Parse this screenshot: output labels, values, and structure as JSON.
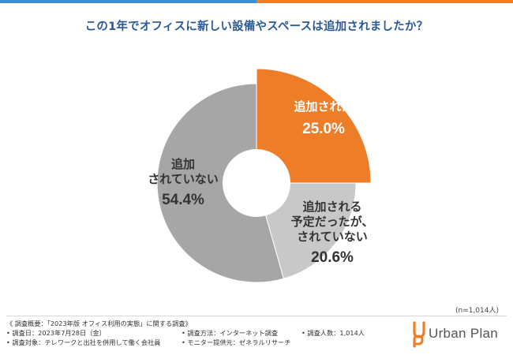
{
  "title": "この1年でオフィスに新しい設備やスペースは追加されましたか？",
  "sample_size": "(n=1,014人)",
  "colors": {
    "added": "#ee7d28",
    "planned": "#c8c8c8",
    "not_added": "#a6a6a6",
    "title": "#2a5a96"
  },
  "chart_data": {
    "type": "pie",
    "title": "この1年でオフィスに新しい設備やスペースは追加されましたか？",
    "style": "donut",
    "slices": [
      {
        "label_lines": [
          "追加された"
        ],
        "value": 25.0,
        "value_label": "25.0%",
        "color": "#ee7d28",
        "exploded": true
      },
      {
        "label_lines": [
          "追加される",
          "予定だったが、",
          "されていない"
        ],
        "value": 20.6,
        "value_label": "20.6%",
        "color": "#c8c8c8",
        "exploded": false
      },
      {
        "label_lines": [
          "追加",
          "されていない"
        ],
        "value": 54.4,
        "value_label": "54.4%",
        "color": "#a6a6a6",
        "exploded": false
      }
    ]
  },
  "footer": {
    "overview": "《 調査概要：「2023年版 オフィス利用の実態」に関する調査》",
    "date": "• 調査日：2023年7月28日（金）",
    "method": "• 調査方法：インターネット調査",
    "count": "• 調査人数：1,014人",
    "target": "• 調査対象：テレワークと出社を併用して働く会社員",
    "provider": "• モニター提供元：ゼネラルリサーチ"
  },
  "logo": {
    "name": "Urban Plan"
  }
}
